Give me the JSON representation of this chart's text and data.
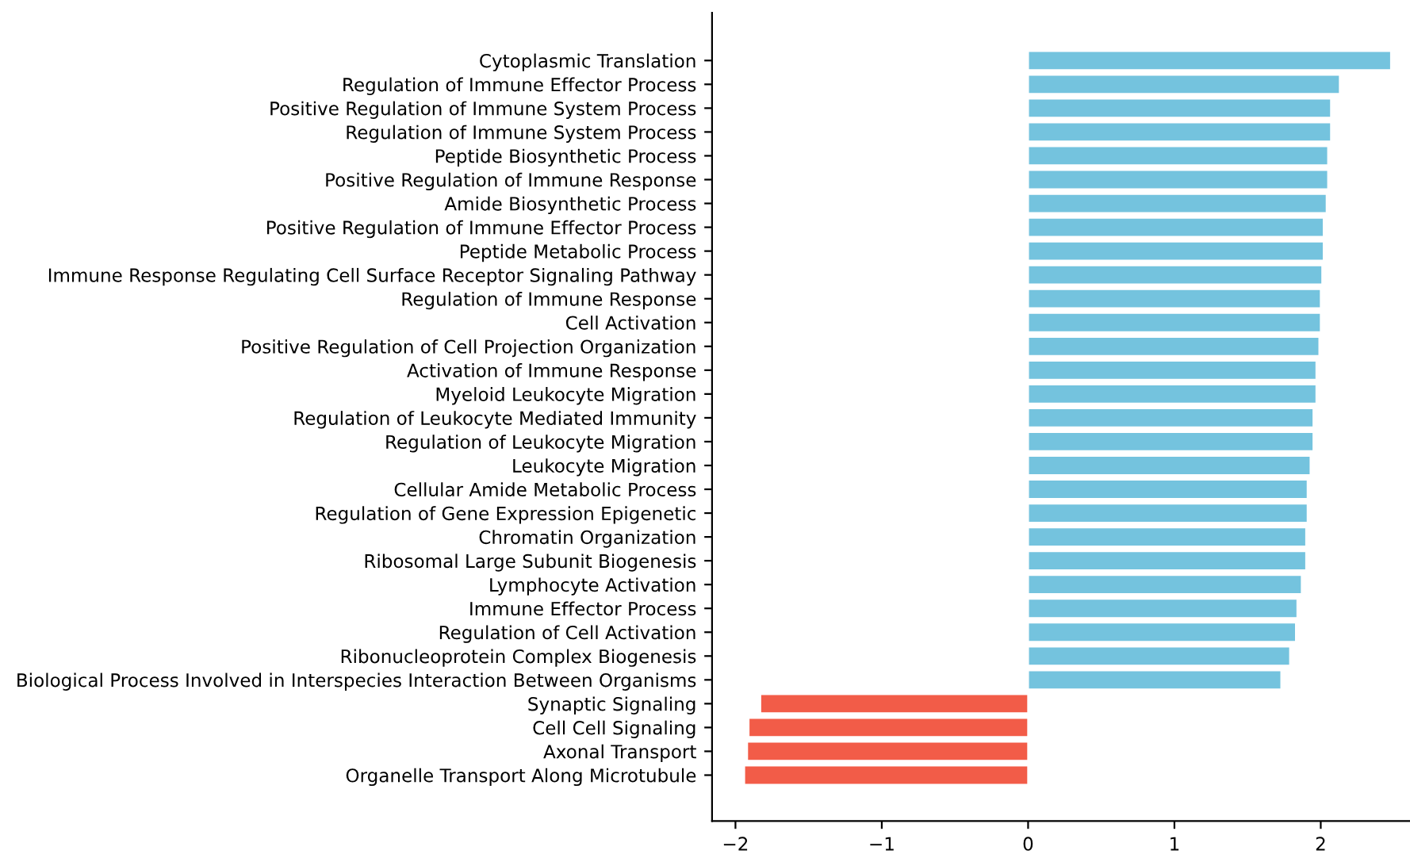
{
  "chart_data": {
    "type": "bar",
    "orientation": "horizontal",
    "categories": [
      "Cytoplasmic Translation",
      "Regulation of Immune Effector Process",
      "Positive Regulation of Immune System Process",
      "Regulation of Immune System Process",
      "Peptide Biosynthetic Process",
      "Positive Regulation of Immune Response",
      "Amide Biosynthetic Process",
      "Positive Regulation of Immune Effector Process",
      "Peptide Metabolic Process",
      "Immune Response Regulating Cell Surface Receptor Signaling Pathway",
      "Regulation of Immune Response",
      "Cell Activation",
      "Positive Regulation of Cell Projection Organization",
      "Activation of Immune Response",
      "Myeloid Leukocyte Migration",
      "Regulation of Leukocyte Mediated Immunity",
      "Regulation of Leukocyte Migration",
      "Leukocyte Migration",
      "Cellular Amide Metabolic Process",
      "Regulation of Gene Expression Epigenetic",
      "Chromatin Organization",
      "Ribosomal Large Subunit Biogenesis",
      "Lymphocyte Activation",
      "Immune Effector Process",
      "Regulation of Cell Activation",
      "Ribonucleoprotein Complex Biogenesis",
      "Biological Process Involved in Interspecies Interaction Between Organisms",
      "Synaptic Signaling",
      "Cell Cell Signaling",
      "Axonal Transport",
      "Organelle Transport Along Microtubule"
    ],
    "values": [
      2.48,
      2.13,
      2.07,
      2.07,
      2.05,
      2.05,
      2.04,
      2.02,
      2.02,
      2.01,
      2.0,
      2.0,
      1.99,
      1.97,
      1.97,
      1.95,
      1.95,
      1.93,
      1.91,
      1.91,
      1.9,
      1.9,
      1.87,
      1.84,
      1.83,
      1.79,
      1.73,
      -1.83,
      -1.91,
      -1.92,
      -1.94
    ],
    "colors": [
      "#74c3de",
      "#74c3de",
      "#74c3de",
      "#74c3de",
      "#74c3de",
      "#74c3de",
      "#74c3de",
      "#74c3de",
      "#74c3de",
      "#74c3de",
      "#74c3de",
      "#74c3de",
      "#74c3de",
      "#74c3de",
      "#74c3de",
      "#74c3de",
      "#74c3de",
      "#74c3de",
      "#74c3de",
      "#74c3de",
      "#74c3de",
      "#74c3de",
      "#74c3de",
      "#74c3de",
      "#74c3de",
      "#74c3de",
      "#74c3de",
      "#f25c48",
      "#f25c48",
      "#f25c48",
      "#f25c48"
    ],
    "xlim": [
      -2.16,
      2.61
    ],
    "xticks": [
      -2,
      -1,
      0,
      1,
      2
    ],
    "grid": false
  }
}
